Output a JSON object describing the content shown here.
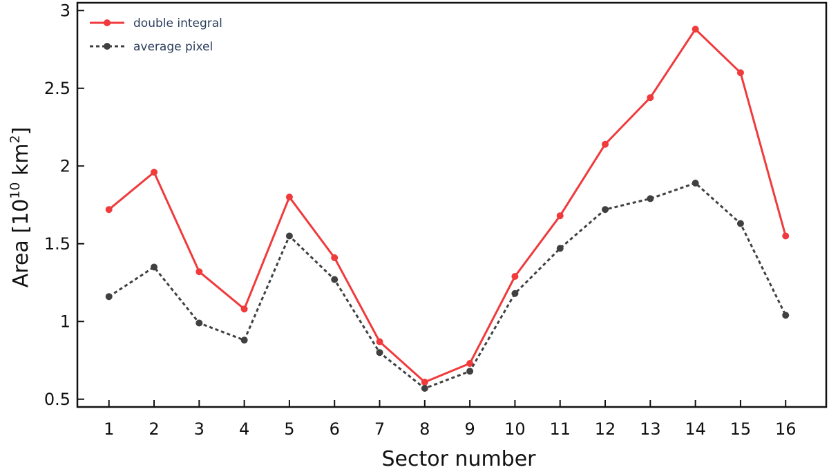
{
  "chart_data": {
    "type": "line",
    "title": "",
    "xlabel": "Sector number",
    "ylabel": {
      "prefix": "Area [10",
      "exp1": "10",
      "unit": " km",
      "exp2": "2",
      "suffix": "]"
    },
    "categories": [
      1,
      2,
      3,
      4,
      5,
      6,
      7,
      8,
      9,
      10,
      11,
      12,
      13,
      14,
      15,
      16
    ],
    "xtick_labels": [
      "1",
      "2",
      "3",
      "4",
      "5",
      "6",
      "7",
      "8",
      "9",
      "10",
      "11",
      "12",
      "13",
      "14",
      "15",
      "16"
    ],
    "xlim": [
      0.3,
      16.9
    ],
    "ylim": [
      0.45,
      3.05
    ],
    "yticks": [
      0.5,
      1,
      1.5,
      2,
      2.5,
      3
    ],
    "ytick_labels": [
      "0.5",
      "1",
      "1.5",
      "2",
      "2.5",
      "3"
    ],
    "grid": false,
    "legend_position": "top-left",
    "series": [
      {
        "name": "double integral",
        "color": "#f03a3c",
        "style": "solid",
        "values": [
          1.72,
          1.96,
          1.32,
          1.08,
          1.8,
          1.41,
          0.87,
          0.61,
          0.73,
          1.29,
          1.68,
          2.14,
          2.44,
          2.88,
          2.6,
          1.55
        ]
      },
      {
        "name": "average pixel",
        "color": "#404040",
        "style": "dotted",
        "values": [
          1.16,
          1.35,
          0.99,
          0.88,
          1.55,
          1.27,
          0.8,
          0.57,
          0.68,
          1.18,
          1.47,
          1.72,
          1.79,
          1.89,
          1.63,
          1.04
        ]
      }
    ]
  }
}
